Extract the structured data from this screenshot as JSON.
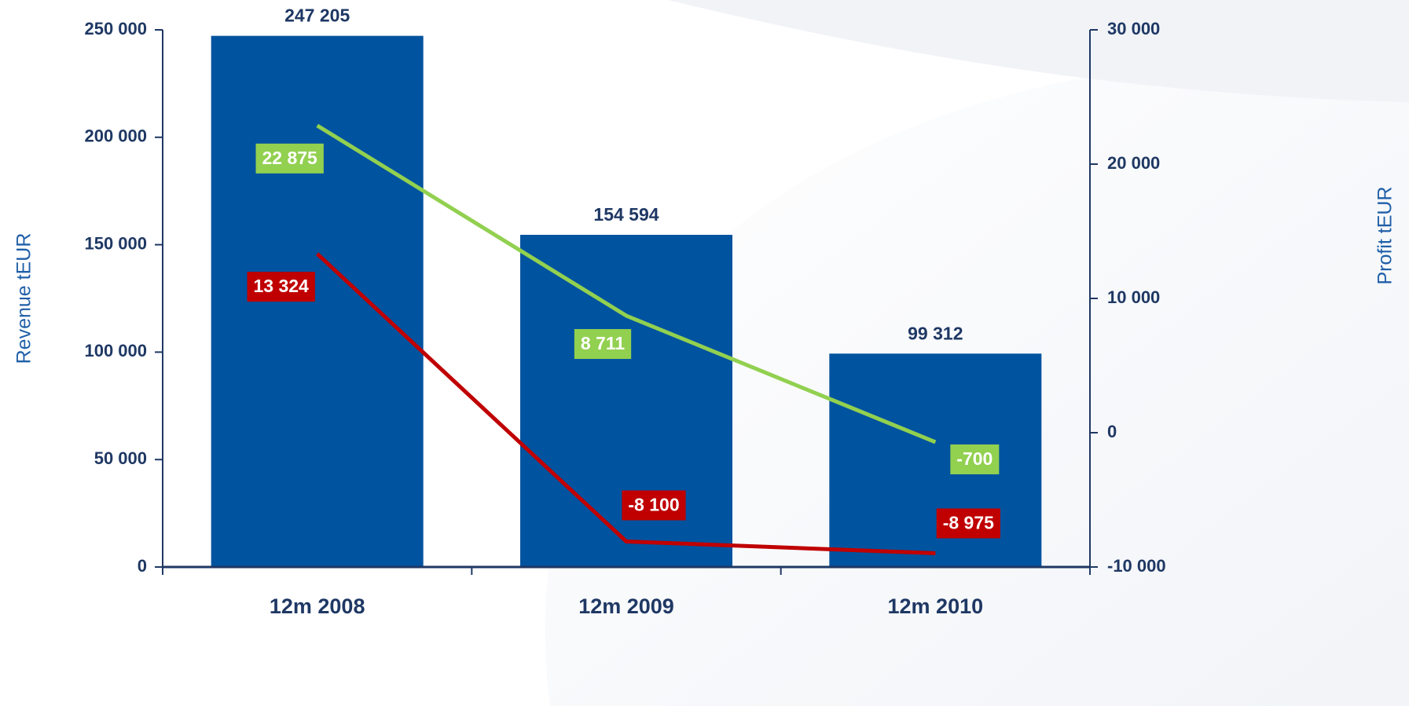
{
  "chart_data": {
    "type": "bar",
    "categories": [
      "12m 2008",
      "12m 2009",
      "12m 2010"
    ],
    "ylabel": "Revenue  tEUR",
    "y2label": "Profit  tEUR",
    "ylim": [
      0,
      250000
    ],
    "yticks": [
      0,
      {
        "value": 50000,
        "label": "50 000"
      },
      {
        "value": 100000,
        "label": "100 000"
      },
      {
        "value": 150000,
        "label": "150 000"
      },
      {
        "value": 200000,
        "label": "200 000"
      },
      {
        "value": 250000,
        "label": "250 000"
      }
    ],
    "y2lim": [
      -10000,
      30000
    ],
    "y2ticks": [
      {
        "value": -10000,
        "label": "-10 000"
      },
      0,
      {
        "value": 10000,
        "label": "10 000"
      },
      {
        "value": 20000,
        "label": "20 000"
      },
      {
        "value": 30000,
        "label": "30 000"
      }
    ],
    "series": [
      {
        "color": "#00539f",
        "values": [
          247205,
          154594,
          99312
        ],
        "value_labels": [
          "247 205",
          "154 594",
          "99 312"
        ]
      },
      {
        "type": "line",
        "axis": "y2",
        "color": "#92d050",
        "values": [
          22875,
          8711,
          -700
        ],
        "value_labels": [
          "22 875",
          "8 711",
          "-700"
        ]
      },
      {
        "type": "line",
        "axis": "y2",
        "color": "#c00000",
        "values": [
          13324,
          -8100,
          -8975
        ],
        "value_labels": [
          "13 324",
          "-8 100",
          "-8 975"
        ]
      }
    ]
  }
}
